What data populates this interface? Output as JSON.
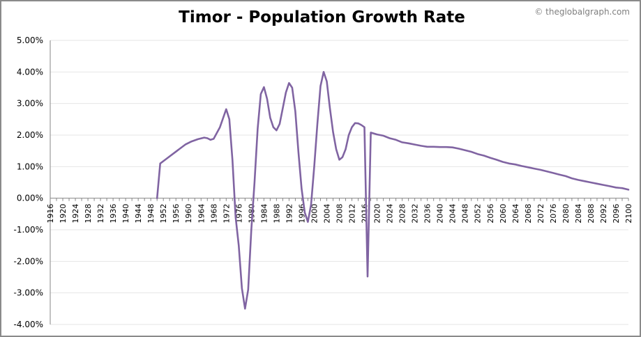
{
  "chart_data": {
    "type": "line",
    "title": "Timor - Population Growth Rate",
    "watermark": "© theglobalgraph.com",
    "xlabel": "",
    "ylabel": "",
    "ylim": [
      -4,
      5
    ],
    "xlim": [
      1916,
      2100
    ],
    "grid": true,
    "legend": "none",
    "line_color": "#8064a2",
    "y_ticks": [
      {
        "value": 5,
        "label": "5.00%"
      },
      {
        "value": 4,
        "label": "4.00%"
      },
      {
        "value": 3,
        "label": "3.00%"
      },
      {
        "value": 2,
        "label": "2.00%"
      },
      {
        "value": 1,
        "label": "1.00%"
      },
      {
        "value": 0,
        "label": "0.00%"
      },
      {
        "value": -1,
        "label": "-1.00%"
      },
      {
        "value": -2,
        "label": "-2.00%"
      },
      {
        "value": -3,
        "label": "-3.00%"
      },
      {
        "value": -4,
        "label": "-4.00%"
      }
    ],
    "x_ticks": [
      "1916",
      "1920",
      "1924",
      "1928",
      "1932",
      "1936",
      "1940",
      "1944",
      "1948",
      "1952",
      "1956",
      "1960",
      "1964",
      "1968",
      "1972",
      "1976",
      "1980",
      "1984",
      "1988",
      "1992",
      "1996",
      "2000",
      "2004",
      "2008",
      "2012",
      "2016",
      "2020",
      "2024",
      "2028",
      "2032",
      "2036",
      "2040",
      "2044",
      "2048",
      "2052",
      "2056",
      "2060",
      "2064",
      "2068",
      "2072",
      "2076",
      "2080",
      "2084",
      "2088",
      "2092",
      "2096",
      "2100"
    ],
    "series": [
      {
        "x": [
          1950,
          1951,
          1953,
          1955,
          1957,
          1959,
          1961,
          1963,
          1965,
          1966,
          1967,
          1968,
          1970,
          1972,
          1973,
          1974,
          1975,
          1976,
          1977,
          1978,
          1979,
          1980,
          1981,
          1982,
          1983,
          1984,
          1985,
          1986,
          1987,
          1988,
          1989,
          1990,
          1991,
          1992,
          1993,
          1994,
          1995,
          1996,
          1997,
          1998,
          1999,
          2000,
          2001,
          2002,
          2003,
          2004,
          2005,
          2006,
          2007,
          2008,
          2009,
          2010,
          2011,
          2012,
          2013,
          2014,
          2015,
          2016,
          2017,
          2018,
          2020,
          2022,
          2024,
          2026,
          2028,
          2030,
          2032,
          2034,
          2036,
          2038,
          2040,
          2042,
          2044,
          2046,
          2048,
          2050,
          2052,
          2054,
          2056,
          2058,
          2060,
          2062,
          2064,
          2066,
          2068,
          2070,
          2072,
          2074,
          2076,
          2078,
          2080,
          2082,
          2084,
          2086,
          2088,
          2090,
          2092,
          2094,
          2096,
          2098,
          2100
        ],
        "y": [
          0.0,
          1.1,
          1.25,
          1.4,
          1.55,
          1.7,
          1.8,
          1.87,
          1.92,
          1.9,
          1.85,
          1.88,
          2.25,
          2.82,
          2.5,
          1.2,
          -0.6,
          -1.5,
          -2.85,
          -3.5,
          -2.9,
          -1.0,
          0.5,
          2.2,
          3.3,
          3.52,
          3.15,
          2.55,
          2.25,
          2.15,
          2.35,
          2.85,
          3.35,
          3.65,
          3.5,
          2.75,
          1.45,
          0.3,
          -0.45,
          -0.75,
          -0.2,
          1.0,
          2.35,
          3.55,
          4.0,
          3.7,
          2.85,
          2.1,
          1.55,
          1.22,
          1.3,
          1.55,
          2.0,
          2.25,
          2.38,
          2.37,
          2.32,
          2.25,
          -2.48,
          2.08,
          2.02,
          1.98,
          1.9,
          1.85,
          1.77,
          1.74,
          1.7,
          1.66,
          1.63,
          1.63,
          1.62,
          1.62,
          1.61,
          1.57,
          1.52,
          1.47,
          1.4,
          1.35,
          1.28,
          1.22,
          1.15,
          1.1,
          1.07,
          1.02,
          0.98,
          0.94,
          0.9,
          0.85,
          0.8,
          0.75,
          0.7,
          0.63,
          0.58,
          0.54,
          0.5,
          0.46,
          0.42,
          0.38,
          0.34,
          0.32,
          0.27
        ]
      }
    ]
  }
}
